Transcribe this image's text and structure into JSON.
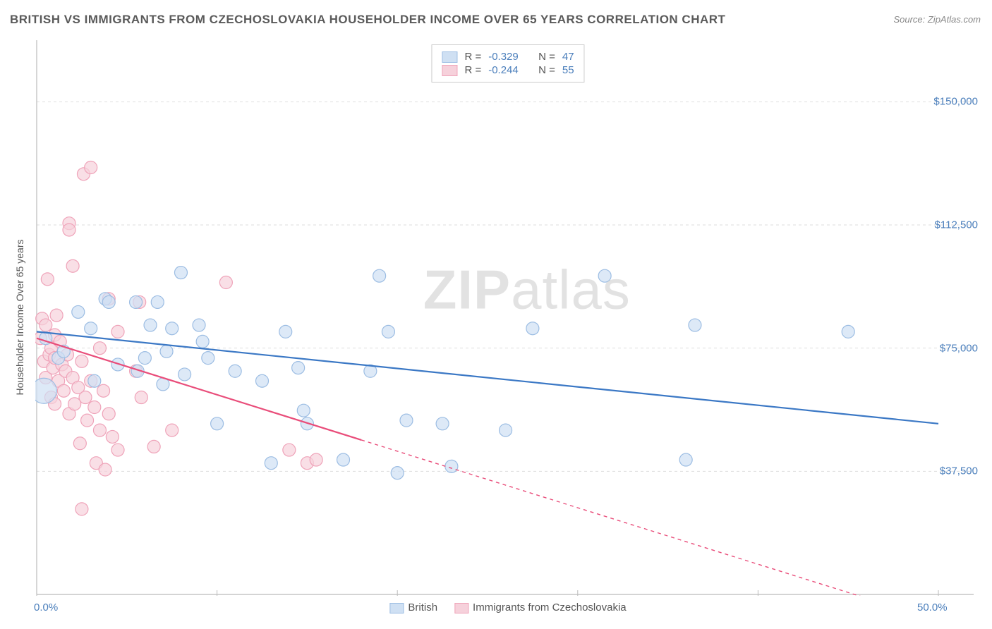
{
  "title": "BRITISH VS IMMIGRANTS FROM CZECHOSLOVAKIA HOUSEHOLDER INCOME OVER 65 YEARS CORRELATION CHART",
  "source": "Source: ZipAtlas.com",
  "watermark": "ZIPatlas",
  "chart": {
    "type": "scatter",
    "ylabel": "Householder Income Over 65 years",
    "xlim": [
      0,
      50
    ],
    "ylim": [
      0,
      168750
    ],
    "xtick_labels": {
      "0": "0.0%",
      "50": "50.0%"
    },
    "xtick_positions": [
      0,
      10,
      20,
      30,
      40,
      50
    ],
    "ytick_labels": {
      "37500": "$37,500",
      "75000": "$75,000",
      "112500": "$112,500",
      "150000": "$150,000"
    },
    "ytick_positions": [
      37500,
      75000,
      112500,
      150000
    ],
    "background_color": "#ffffff",
    "grid_color": "#dddddd",
    "axis_color": "#bbbbbb",
    "series": [
      {
        "name": "British",
        "color_fill": "#cfe0f3",
        "color_stroke": "#9cbde3",
        "line_color": "#3b78c5",
        "r": -0.329,
        "n": 47,
        "marker_radius": 9,
        "marker_opacity": 0.7,
        "trend": {
          "x1": 0,
          "y1": 80000,
          "x2": 50,
          "y2": 52000,
          "dash_from_x": null
        },
        "points": [
          [
            0.4,
            62000,
            18
          ],
          [
            0.5,
            78000,
            9
          ],
          [
            1.2,
            72000,
            9
          ],
          [
            1.5,
            74000,
            9
          ],
          [
            2.3,
            86000,
            9
          ],
          [
            3.0,
            81000,
            9
          ],
          [
            3.2,
            65000,
            9
          ],
          [
            3.8,
            90000,
            9
          ],
          [
            4.0,
            89000,
            9
          ],
          [
            4.5,
            70000,
            9
          ],
          [
            5.5,
            89000,
            9
          ],
          [
            5.6,
            68000,
            9
          ],
          [
            6.0,
            72000,
            9
          ],
          [
            6.3,
            82000,
            9
          ],
          [
            6.7,
            89000,
            9
          ],
          [
            7.0,
            64000,
            9
          ],
          [
            7.2,
            74000,
            9
          ],
          [
            7.5,
            81000,
            9
          ],
          [
            8.0,
            98000,
            9
          ],
          [
            8.2,
            67000,
            9
          ],
          [
            9.0,
            82000,
            9
          ],
          [
            9.2,
            77000,
            9
          ],
          [
            9.5,
            72000,
            9
          ],
          [
            10.0,
            52000,
            9
          ],
          [
            11.0,
            68000,
            9
          ],
          [
            12.5,
            65000,
            9
          ],
          [
            13.0,
            40000,
            9
          ],
          [
            13.8,
            80000,
            9
          ],
          [
            14.5,
            69000,
            9
          ],
          [
            14.8,
            56000,
            9
          ],
          [
            15.0,
            52000,
            9
          ],
          [
            17.0,
            41000,
            9
          ],
          [
            18.5,
            68000,
            9
          ],
          [
            19.0,
            97000,
            9
          ],
          [
            19.5,
            80000,
            9
          ],
          [
            20.0,
            37000,
            9
          ],
          [
            20.5,
            53000,
            9
          ],
          [
            22.5,
            52000,
            9
          ],
          [
            23.0,
            39000,
            9
          ],
          [
            26.0,
            50000,
            9
          ],
          [
            27.5,
            81000,
            9
          ],
          [
            31.5,
            97000,
            9
          ],
          [
            36.0,
            41000,
            9
          ],
          [
            36.5,
            82000,
            9
          ],
          [
            45.0,
            80000,
            9
          ]
        ]
      },
      {
        "name": "Immigrants from Czechoslovakia",
        "color_fill": "#f6d1db",
        "color_stroke": "#efa3b9",
        "line_color": "#e94d7a",
        "r": -0.244,
        "n": 55,
        "marker_radius": 9,
        "marker_opacity": 0.7,
        "trend": {
          "x1": 0,
          "y1": 78000,
          "x2": 50,
          "y2": -8000,
          "dash_from_x": 18
        },
        "points": [
          [
            0.2,
            78000,
            9
          ],
          [
            0.3,
            84000,
            9
          ],
          [
            0.4,
            71000,
            9
          ],
          [
            0.5,
            82000,
            9
          ],
          [
            0.5,
            66000,
            9
          ],
          [
            0.6,
            96000,
            9
          ],
          [
            0.7,
            73000,
            9
          ],
          [
            0.8,
            75000,
            9
          ],
          [
            0.8,
            60000,
            9
          ],
          [
            0.9,
            69000,
            9
          ],
          [
            1.0,
            79000,
            9
          ],
          [
            1.0,
            58000,
            9
          ],
          [
            1.0,
            72000,
            9
          ],
          [
            1.1,
            85000,
            9
          ],
          [
            1.2,
            65000,
            9
          ],
          [
            1.3,
            77000,
            9
          ],
          [
            1.4,
            70000,
            9
          ],
          [
            1.5,
            62000,
            9
          ],
          [
            1.6,
            68000,
            9
          ],
          [
            1.7,
            73000,
            9
          ],
          [
            1.8,
            55000,
            9
          ],
          [
            1.8,
            113000,
            9
          ],
          [
            1.8,
            111000,
            9
          ],
          [
            2.0,
            66000,
            9
          ],
          [
            2.0,
            100000,
            9
          ],
          [
            2.1,
            58000,
            9
          ],
          [
            2.3,
            63000,
            9
          ],
          [
            2.4,
            46000,
            9
          ],
          [
            2.5,
            71000,
            9
          ],
          [
            2.5,
            26000,
            9
          ],
          [
            2.7,
            60000,
            9
          ],
          [
            2.6,
            128000,
            9
          ],
          [
            2.8,
            53000,
            9
          ],
          [
            3.0,
            65000,
            9
          ],
          [
            3.0,
            130000,
            9
          ],
          [
            3.2,
            57000,
            9
          ],
          [
            3.3,
            40000,
            9
          ],
          [
            3.5,
            50000,
            9
          ],
          [
            3.5,
            75000,
            9
          ],
          [
            3.7,
            62000,
            9
          ],
          [
            3.8,
            38000,
            9
          ],
          [
            4.0,
            55000,
            9
          ],
          [
            4.0,
            90000,
            9
          ],
          [
            4.2,
            48000,
            9
          ],
          [
            4.5,
            44000,
            9
          ],
          [
            4.5,
            80000,
            9
          ],
          [
            5.5,
            68000,
            9
          ],
          [
            5.7,
            89000,
            9
          ],
          [
            5.8,
            60000,
            9
          ],
          [
            6.5,
            45000,
            9
          ],
          [
            7.5,
            50000,
            9
          ],
          [
            10.5,
            95000,
            9
          ],
          [
            14.0,
            44000,
            9
          ],
          [
            15.0,
            40000,
            9
          ],
          [
            15.5,
            41000,
            9
          ]
        ]
      }
    ],
    "legend_bottom": [
      {
        "label": "British",
        "fill": "#cfe0f3",
        "stroke": "#9cbde3"
      },
      {
        "label": "Immigrants from Czechoslovakia",
        "fill": "#f6d1db",
        "stroke": "#efa3b9"
      }
    ]
  }
}
